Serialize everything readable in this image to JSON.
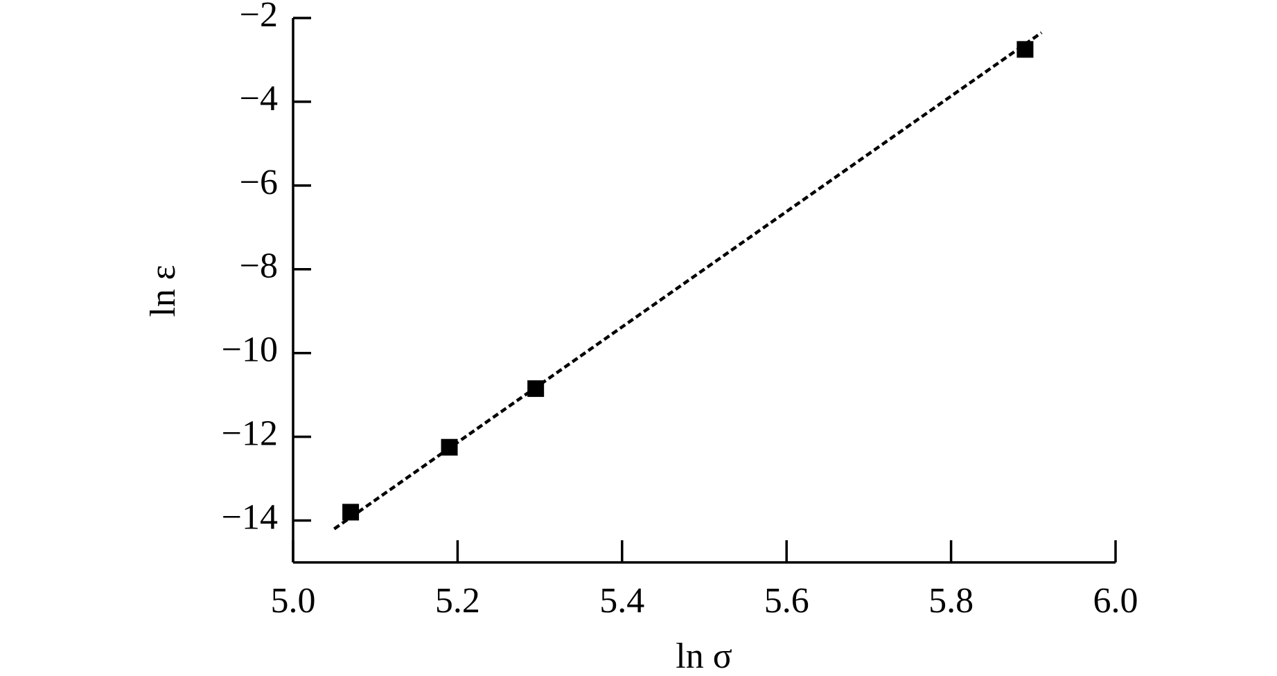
{
  "chart_data": {
    "type": "scatter",
    "x_label": "ln σ",
    "y_label": "ln ε",
    "points": {
      "x": [
        5.07,
        5.19,
        5.295,
        5.89
      ],
      "y": [
        -13.8,
        -12.25,
        -10.85,
        -2.75
      ],
      "color": "#000000",
      "marker": "square"
    },
    "fit_line": {
      "x": [
        5.05,
        5.91
      ],
      "y": [
        -14.2,
        -2.35
      ],
      "color": "#000000",
      "style": "dashed"
    },
    "xlim": [
      5,
      6
    ],
    "xticks": [
      {
        "value": 5,
        "label": "5.0"
      },
      5.2,
      5.4,
      5.6,
      5.8,
      {
        "value": 6,
        "label": "6.0"
      }
    ],
    "ylim": [
      -15,
      -2
    ],
    "yticks": [
      {
        "value": -2,
        "label": "−2"
      },
      {
        "value": -4,
        "label": "−4"
      },
      {
        "value": -6,
        "label": "−6"
      },
      {
        "value": -8,
        "label": "−8"
      },
      {
        "value": -10,
        "label": "−10"
      },
      {
        "value": -12,
        "label": "−12"
      },
      {
        "value": -14,
        "label": "−14"
      }
    ],
    "grid": false
  }
}
